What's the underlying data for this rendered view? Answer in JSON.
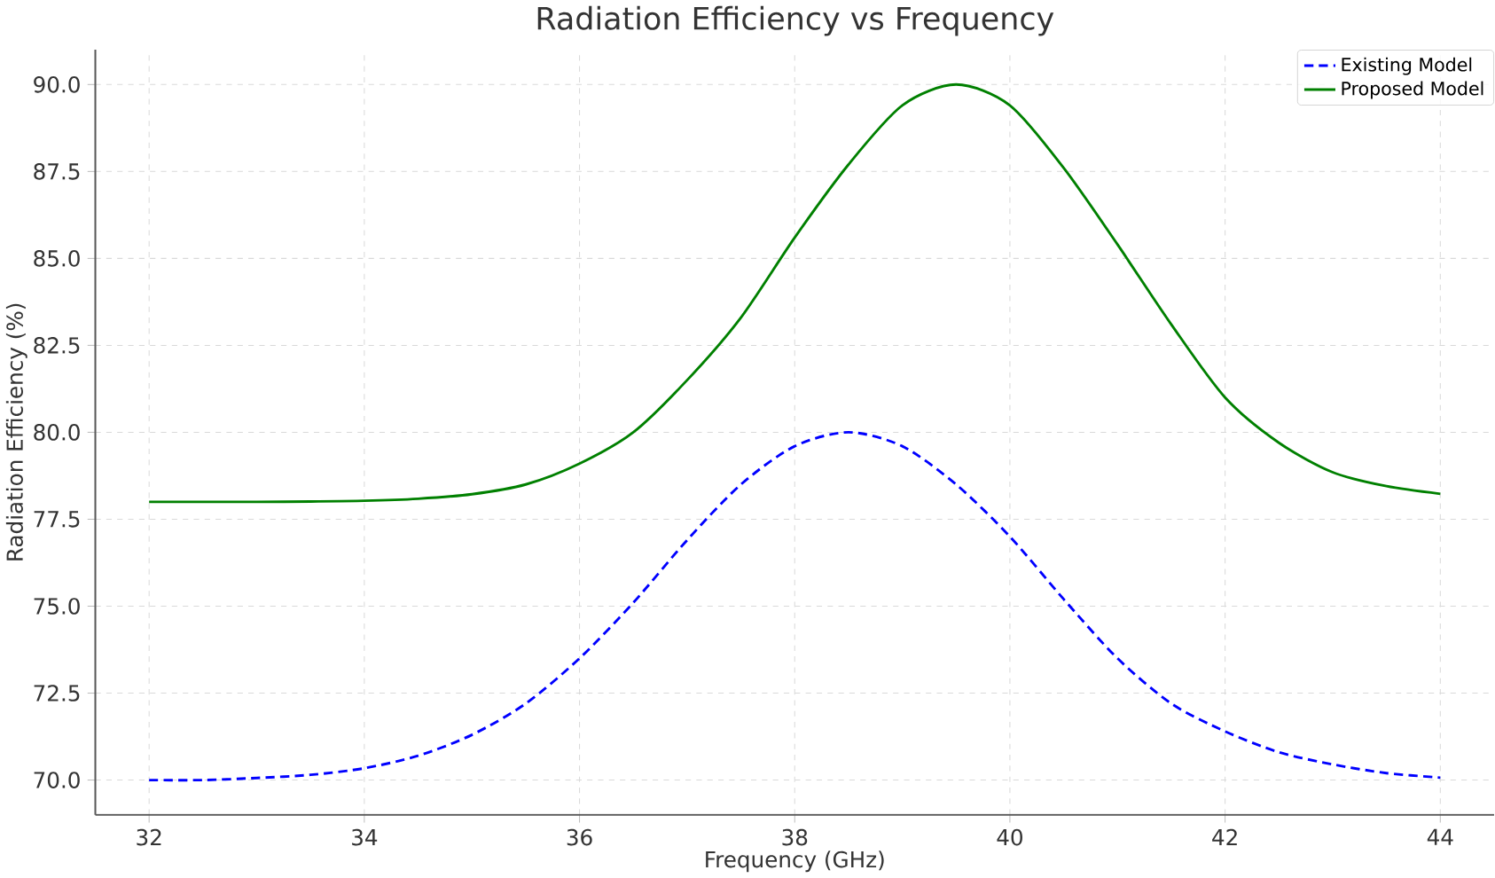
{
  "chart_data": {
    "type": "line",
    "title": "Radiation Efficiency vs Frequency",
    "xlabel": "Frequency (GHz)",
    "ylabel": "Radiation Efficiency (%)",
    "xlim": [
      31.5,
      44.5
    ],
    "ylim": [
      69,
      91
    ],
    "xticks": [
      32,
      34,
      36,
      38,
      40,
      42,
      44
    ],
    "yticks": [
      {
        "value": 70,
        "label": "70.0"
      },
      {
        "value": 72.5,
        "label": "72.5"
      },
      {
        "value": 75,
        "label": "75.0"
      },
      {
        "value": 77.5,
        "label": "77.5"
      },
      {
        "value": 80,
        "label": "80.0"
      },
      {
        "value": 82.5,
        "label": "82.5"
      },
      {
        "value": 85,
        "label": "85.0"
      },
      {
        "value": 87.5,
        "label": "87.5"
      },
      {
        "value": 90,
        "label": "90.0"
      }
    ],
    "grid": true,
    "legend": "top right",
    "x": [
      32,
      32.5,
      33,
      33.5,
      34,
      34.5,
      35,
      35.5,
      36,
      36.5,
      37,
      37.5,
      38,
      38.5,
      39,
      39.5,
      40,
      40.5,
      41,
      41.5,
      42,
      42.5,
      43,
      43.5,
      44
    ],
    "series": [
      {
        "name": "Existing Model",
        "color": "#0000ff",
        "line_style": "dashed",
        "values": [
          70.0,
          70.0,
          70.06,
          70.15,
          70.34,
          70.7,
          71.3,
          72.2,
          73.5,
          75.1,
          76.9,
          78.5,
          79.6,
          80.0,
          79.6,
          78.5,
          77.0,
          75.2,
          73.5,
          72.2,
          71.4,
          70.8,
          70.45,
          70.2,
          70.07
        ]
      },
      {
        "name": "Proposed Model",
        "color": "#008000",
        "line_style": "solid",
        "values": [
          78.0,
          78.0,
          78.0,
          78.01,
          78.03,
          78.09,
          78.22,
          78.5,
          79.1,
          80.0,
          81.5,
          83.3,
          85.6,
          87.7,
          89.4,
          90.0,
          89.4,
          87.6,
          85.4,
          83.1,
          81.0,
          79.7,
          78.85,
          78.45,
          78.23
        ]
      }
    ]
  }
}
